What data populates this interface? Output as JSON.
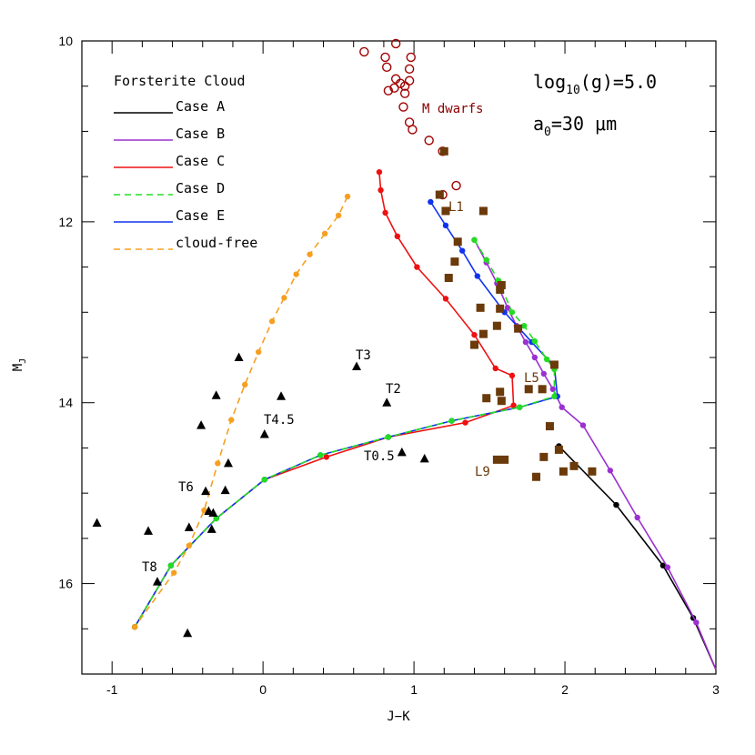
{
  "chart_data": {
    "type": "scatter",
    "xlabel": "J−K",
    "ylabel": "M",
    "ylabel_sub": "J",
    "xlim": [
      -1.2,
      3.0
    ],
    "ylim": [
      17.0,
      10.0
    ],
    "x_ticks": [
      -1,
      0,
      1,
      2,
      3
    ],
    "y_ticks": [
      10,
      12,
      14,
      16
    ],
    "annotations": {
      "gravity": "log",
      "gravity_sub": "10",
      "gravity_rest": "(g)=5.0",
      "grain": "a",
      "grain_sub": "0",
      "grain_rest": "=30 μm",
      "m_dwarfs": "M dwarfs",
      "L1": "L1",
      "L5": "L5",
      "L9": "L9",
      "T0_5": "T0.5",
      "T2": "T2",
      "T3": "T3",
      "T4_5": "T4.5",
      "T6": "T6",
      "T8": "T8"
    },
    "legend": {
      "title": "Forsterite Cloud",
      "entries": [
        {
          "label": "Case A",
          "color": "#000000",
          "dash": "solid"
        },
        {
          "label": "Case B",
          "color": "#9b30d0",
          "dash": "solid"
        },
        {
          "label": "Case C",
          "color": "#ee1111",
          "dash": "solid"
        },
        {
          "label": "Case D",
          "color": "#22dd22",
          "dash": "dashed"
        },
        {
          "label": "Case E",
          "color": "#1133ee",
          "dash": "solid"
        },
        {
          "label": "cloud-free",
          "color": "#f5a020",
          "dash": "dashed"
        }
      ]
    },
    "series": [
      {
        "name": "Case A",
        "color": "#000000",
        "dash": "solid",
        "points": [
          [
            1.96,
            14.48
          ],
          [
            2.34,
            15.13
          ],
          [
            2.65,
            15.8
          ],
          [
            2.85,
            16.38
          ],
          [
            3.0,
            16.95
          ]
        ]
      },
      {
        "name": "Case B",
        "color": "#9b30d0",
        "dash": "solid",
        "points": [
          [
            1.4,
            12.2
          ],
          [
            1.48,
            12.45
          ],
          [
            1.55,
            12.68
          ],
          [
            1.62,
            12.95
          ],
          [
            1.68,
            13.15
          ],
          [
            1.74,
            13.33
          ],
          [
            1.8,
            13.5
          ],
          [
            1.86,
            13.68
          ],
          [
            1.92,
            13.85
          ],
          [
            1.98,
            14.05
          ],
          [
            2.12,
            14.25
          ],
          [
            2.3,
            14.75
          ],
          [
            2.48,
            15.27
          ],
          [
            2.68,
            15.82
          ],
          [
            2.87,
            16.43
          ],
          [
            3.0,
            16.95
          ]
        ]
      },
      {
        "name": "Case C",
        "color": "#ee1111",
        "dash": "solid",
        "points": [
          [
            0.77,
            11.45
          ],
          [
            0.78,
            11.65
          ],
          [
            0.81,
            11.9
          ],
          [
            0.89,
            12.16
          ],
          [
            1.02,
            12.5
          ],
          [
            1.21,
            12.85
          ],
          [
            1.4,
            13.25
          ],
          [
            1.54,
            13.62
          ],
          [
            1.65,
            13.7
          ],
          [
            1.66,
            14.03
          ],
          [
            1.34,
            14.22
          ],
          [
            0.83,
            14.38
          ],
          [
            0.42,
            14.6
          ],
          [
            0.01,
            14.85
          ],
          [
            -0.31,
            15.28
          ],
          [
            -0.61,
            15.8
          ],
          [
            -0.85,
            16.48
          ]
        ]
      },
      {
        "name": "Case E",
        "color": "#1133ee",
        "dash": "solid",
        "points": [
          [
            1.11,
            11.78
          ],
          [
            1.21,
            12.04
          ],
          [
            1.32,
            12.32
          ],
          [
            1.42,
            12.6
          ],
          [
            1.6,
            13.0
          ],
          [
            1.78,
            13.33
          ],
          [
            1.93,
            13.6
          ],
          [
            1.95,
            13.93
          ],
          [
            1.7,
            14.05
          ],
          [
            1.25,
            14.2
          ],
          [
            0.83,
            14.38
          ],
          [
            0.38,
            14.58
          ],
          [
            0.01,
            14.85
          ],
          [
            -0.31,
            15.28
          ],
          [
            -0.61,
            15.8
          ],
          [
            -0.85,
            16.48
          ]
        ]
      },
      {
        "name": "Case D",
        "color": "#22dd22",
        "dash": "dashed",
        "points": [
          [
            1.4,
            12.2
          ],
          [
            1.48,
            12.42
          ],
          [
            1.56,
            12.65
          ],
          [
            1.65,
            13.0
          ],
          [
            1.73,
            13.15
          ],
          [
            1.8,
            13.32
          ],
          [
            1.88,
            13.52
          ],
          [
            1.93,
            13.63
          ],
          [
            1.93,
            13.93
          ],
          [
            1.7,
            14.05
          ],
          [
            1.25,
            14.2
          ],
          [
            0.83,
            14.38
          ],
          [
            0.38,
            14.58
          ],
          [
            0.01,
            14.85
          ],
          [
            -0.31,
            15.28
          ],
          [
            -0.61,
            15.8
          ],
          [
            -0.85,
            16.48
          ]
        ]
      },
      {
        "name": "cloud-free",
        "color": "#f5a020",
        "dash": "dashed",
        "points": [
          [
            0.56,
            11.72
          ],
          [
            0.5,
            11.93
          ],
          [
            0.41,
            12.13
          ],
          [
            0.31,
            12.36
          ],
          [
            0.22,
            12.58
          ],
          [
            0.14,
            12.84
          ],
          [
            0.06,
            13.1
          ],
          [
            -0.03,
            13.44
          ],
          [
            -0.12,
            13.8
          ],
          [
            -0.21,
            14.19
          ],
          [
            -0.3,
            14.67
          ],
          [
            -0.39,
            15.19
          ],
          [
            -0.49,
            15.58
          ],
          [
            -0.59,
            15.88
          ],
          [
            -0.85,
            16.48
          ]
        ]
      }
    ],
    "m_dwarfs": [
      [
        0.67,
        10.12
      ],
      [
        0.81,
        10.18
      ],
      [
        0.98,
        10.18
      ],
      [
        0.88,
        10.03
      ],
      [
        0.82,
        10.29
      ],
      [
        0.97,
        10.31
      ],
      [
        0.88,
        10.42
      ],
      [
        0.97,
        10.44
      ],
      [
        0.91,
        10.47
      ],
      [
        0.94,
        10.5
      ],
      [
        0.87,
        10.52
      ],
      [
        0.83,
        10.55
      ],
      [
        0.94,
        10.58
      ],
      [
        0.93,
        10.73
      ],
      [
        0.97,
        10.9
      ],
      [
        0.99,
        10.98
      ],
      [
        1.1,
        11.1
      ],
      [
        1.19,
        11.22
      ],
      [
        1.28,
        11.6
      ],
      [
        1.19,
        11.7
      ]
    ],
    "l_dwarfs": [
      [
        1.2,
        11.22
      ],
      [
        1.17,
        11.7
      ],
      [
        1.21,
        11.88
      ],
      [
        1.46,
        11.88
      ],
      [
        1.29,
        12.22
      ],
      [
        1.27,
        12.44
      ],
      [
        1.23,
        12.62
      ],
      [
        1.58,
        12.7
      ],
      [
        1.57,
        12.75
      ],
      [
        1.44,
        12.95
      ],
      [
        1.57,
        12.96
      ],
      [
        1.55,
        13.15
      ],
      [
        1.69,
        13.18
      ],
      [
        1.46,
        13.24
      ],
      [
        1.4,
        13.36
      ],
      [
        1.93,
        13.58
      ],
      [
        1.85,
        13.85
      ],
      [
        1.76,
        13.85
      ],
      [
        1.57,
        13.88
      ],
      [
        1.48,
        13.95
      ],
      [
        1.58,
        13.98
      ],
      [
        1.9,
        14.26
      ],
      [
        1.96,
        14.52
      ],
      [
        1.86,
        14.6
      ],
      [
        1.55,
        14.63
      ],
      [
        1.6,
        14.63
      ],
      [
        2.06,
        14.7
      ],
      [
        2.18,
        14.76
      ],
      [
        1.99,
        14.76
      ],
      [
        1.81,
        14.82
      ]
    ],
    "t_dwarfs": [
      [
        0.62,
        13.6
      ],
      [
        0.82,
        14.0
      ],
      [
        -0.16,
        13.5
      ],
      [
        -0.31,
        13.92
      ],
      [
        0.12,
        13.93
      ],
      [
        -0.41,
        14.25
      ],
      [
        0.01,
        14.35
      ],
      [
        0.92,
        14.55
      ],
      [
        1.07,
        14.62
      ],
      [
        -0.25,
        14.97
      ],
      [
        -0.23,
        14.67
      ],
      [
        -0.38,
        14.98
      ],
      [
        -0.36,
        15.2
      ],
      [
        -0.33,
        15.22
      ],
      [
        -0.49,
        15.38
      ],
      [
        -0.34,
        15.4
      ],
      [
        -0.76,
        15.42
      ],
      [
        -1.1,
        15.33
      ],
      [
        -0.7,
        15.98
      ],
      [
        -0.5,
        16.55
      ]
    ]
  }
}
